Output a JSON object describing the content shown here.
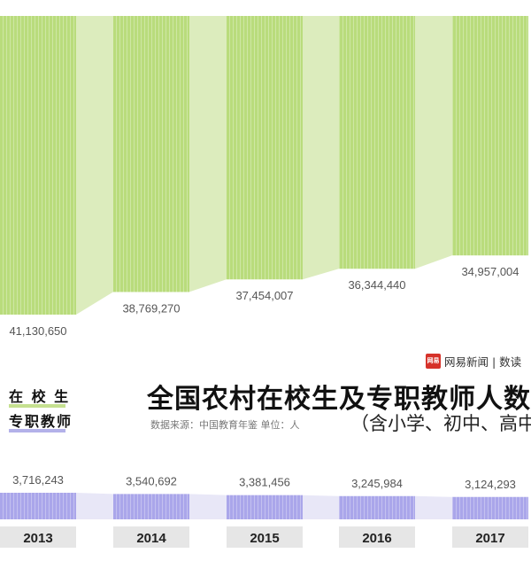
{
  "title": "全国农村在校生及专职教师人数",
  "subtitle": "（含小学、初中、高中）",
  "source": "数据来源：中国教育年鉴    单位：人",
  "brand": {
    "name": "网易新闻 | 数读",
    "mark": "网易"
  },
  "legend": [
    {
      "label": "在 校 生",
      "color": "#b9dc7c"
    },
    {
      "label": "专职教师",
      "color": "#b3b1e9"
    }
  ],
  "colors": {
    "students": "#b9dc7c",
    "teachers": "#aaa6ea",
    "flow": "#e8e7f7",
    "axis_bg": "#e6e6e6"
  },
  "chart_data": {
    "type": "bar",
    "categories": [
      "2013",
      "2014",
      "2015",
      "2016",
      "2017"
    ],
    "series": [
      {
        "name": "在校生",
        "values": [
          41130650,
          38769270,
          37454007,
          36344440,
          34957004
        ],
        "labels": [
          "41,130,650",
          "38,769,270",
          "37,454,007",
          "36,344,440",
          "34,957,004"
        ]
      },
      {
        "name": "专职教师",
        "values": [
          3716243,
          3540692,
          3381456,
          3245984,
          3124293
        ],
        "labels": [
          "3,716,243",
          "3,540,692",
          "3,381,456",
          "3,245,984",
          "3,124,293"
        ]
      }
    ]
  }
}
